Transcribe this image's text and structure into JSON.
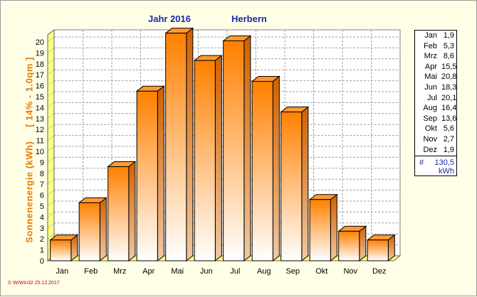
{
  "header": {
    "title_left": "Jahr  2016",
    "title_right": "Herbern"
  },
  "axis_label": {
    "part1": "Sonnenenergie   (kWh)",
    "part2": "[ 14% - 1.0qm ]"
  },
  "legend": {
    "rows": [
      {
        "month": "Jan",
        "value": "1,9"
      },
      {
        "month": "Feb",
        "value": "5,3"
      },
      {
        "month": "Mrz",
        "value": "8,6"
      },
      {
        "month": "Apr",
        "value": "15,5"
      },
      {
        "month": "Mai",
        "value": "20,8"
      },
      {
        "month": "Jun",
        "value": "18,3"
      },
      {
        "month": "Jul",
        "value": "20,1"
      },
      {
        "month": "Aug",
        "value": "16,4"
      },
      {
        "month": "Sep",
        "value": "13,6"
      },
      {
        "month": "Okt",
        "value": "5,6"
      },
      {
        "month": "Nov",
        "value": "2,7"
      },
      {
        "month": "Dez",
        "value": "1,9"
      }
    ],
    "total_symbol": "#",
    "total_value": "130,5",
    "total_unit": "kWh"
  },
  "footer": "© WrWin32  25.12.2017",
  "colors": {
    "bar_top": "#ff8000",
    "bar_bottom": "#ffffff",
    "title": "#1a2aa8",
    "axis_label": "#e87a00",
    "floor": "#ffff80"
  },
  "chart_data": {
    "type": "bar",
    "title": "Jahr  2016    Herbern",
    "ylabel": "Sonnenenergie   (kWh)   [ 14% - 1.0qm ]",
    "xlabel": "",
    "categories": [
      "Jan",
      "Feb",
      "Mrz",
      "Apr",
      "Mai",
      "Jun",
      "Jul",
      "Aug",
      "Sep",
      "Okt",
      "Nov",
      "Dez"
    ],
    "values": [
      1.9,
      5.3,
      8.6,
      15.5,
      20.8,
      18.3,
      20.1,
      16.4,
      13.6,
      5.6,
      2.7,
      1.9
    ],
    "ylim": [
      0,
      20
    ],
    "yticks": [
      0,
      1,
      2,
      3,
      4,
      5,
      6,
      7,
      8,
      9,
      10,
      11,
      12,
      13,
      14,
      15,
      16,
      17,
      18,
      19,
      20
    ],
    "grid": true,
    "legend": "right"
  }
}
